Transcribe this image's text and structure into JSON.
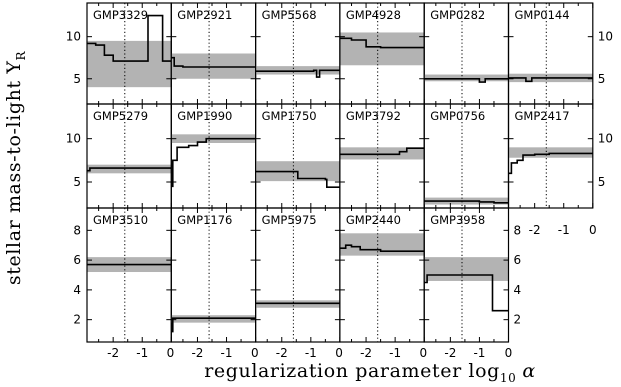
{
  "figure": {
    "ylabel_main": "stellar mass-to-light Υ",
    "ylabel_sub": "R",
    "xlabel_main": "regularization parameter log",
    "xlabel_sub": "10",
    "xlabel_symbol": "α"
  },
  "colors": {
    "band": "#b3b3b3",
    "line": "#000000",
    "axis": "#000000",
    "text": "#000000"
  },
  "chart_data": {
    "type": "line",
    "layout": "small multiples grid, 3 rows x 6 columns (last column of bottom row empty)",
    "x_axis": {
      "label": "regularization parameter log10 α",
      "range": [
        -2.9,
        0.0
      ],
      "ticks": [
        -2,
        -1,
        0
      ],
      "tick_labels_bottom": [
        "-2",
        "-1",
        "0"
      ],
      "tick_labels_row3_col6": [
        "-2",
        "-1",
        "0"
      ],
      "reference_line": -1.6,
      "reference_style": "dotted vertical"
    },
    "y_axis": {
      "label": "stellar mass-to-light ΥR",
      "rows": [
        {
          "range": [
            2.0,
            14.0
          ],
          "ticks": [
            5,
            10
          ],
          "tick_labels": [
            "5",
            "10"
          ]
        },
        {
          "range": [
            2.0,
            14.0
          ],
          "ticks": [
            5,
            10
          ],
          "tick_labels": [
            "5",
            "10"
          ]
        },
        {
          "range": [
            0.5,
            9.5
          ],
          "ticks": [
            2,
            4,
            6,
            8
          ],
          "tick_labels": [
            "2",
            "4",
            "6",
            "8"
          ]
        }
      ]
    },
    "panels": [
      {
        "name": "GMP3329",
        "row": 0,
        "col": 0,
        "band": [
          4.0,
          9.5
        ],
        "points": [
          [
            -2.9,
            9.2
          ],
          [
            -2.6,
            9.0
          ],
          [
            -2.3,
            7.8
          ],
          [
            -2.0,
            7.1
          ],
          [
            -1.5,
            7.1
          ],
          [
            -1.0,
            7.1
          ],
          [
            -0.8,
            12.5
          ],
          [
            -0.4,
            12.5
          ],
          [
            -0.3,
            7.1
          ],
          [
            0.0,
            7.1
          ]
        ]
      },
      {
        "name": "GMP2921",
        "row": 0,
        "col": 1,
        "band": [
          5.0,
          8.0
        ],
        "points": [
          [
            -2.9,
            7.5
          ],
          [
            -2.8,
            6.5
          ],
          [
            -2.5,
            6.4
          ],
          [
            -2.0,
            6.4
          ],
          [
            -1.0,
            6.4
          ],
          [
            -0.5,
            6.4
          ],
          [
            0.0,
            6.4
          ]
        ]
      },
      {
        "name": "GMP5568",
        "row": 0,
        "col": 2,
        "band": [
          5.5,
          6.5
        ],
        "points": [
          [
            -2.9,
            5.9
          ],
          [
            -2.0,
            5.9
          ],
          [
            -1.2,
            5.9
          ],
          [
            -0.9,
            6.0
          ],
          [
            -0.8,
            5.2
          ],
          [
            -0.7,
            6.0
          ],
          [
            0.0,
            6.0
          ]
        ]
      },
      {
        "name": "GMP4928",
        "row": 0,
        "col": 3,
        "band": [
          6.6,
          10.5
        ],
        "points": [
          [
            -2.9,
            9.8
          ],
          [
            -2.5,
            9.6
          ],
          [
            -2.0,
            8.8
          ],
          [
            -1.5,
            8.7
          ],
          [
            -1.0,
            8.7
          ],
          [
            -0.5,
            8.7
          ],
          [
            0.0,
            8.7
          ]
        ]
      },
      {
        "name": "GMP0282",
        "row": 0,
        "col": 4,
        "band": [
          4.7,
          5.5
        ],
        "points": [
          [
            -2.9,
            5.0
          ],
          [
            -2.0,
            5.0
          ],
          [
            -1.2,
            5.0
          ],
          [
            -1.0,
            4.6
          ],
          [
            -0.8,
            5.0
          ],
          [
            0.0,
            5.0
          ]
        ]
      },
      {
        "name": "GMP0144",
        "row": 0,
        "col": 5,
        "band": [
          4.6,
          5.6
        ],
        "points": [
          [
            -2.9,
            5.1
          ],
          [
            -2.5,
            5.1
          ],
          [
            -2.3,
            4.7
          ],
          [
            -2.1,
            5.1
          ],
          [
            -1.5,
            5.1
          ],
          [
            -0.7,
            5.1
          ],
          [
            0.0,
            5.1
          ]
        ]
      },
      {
        "name": "GMP5279",
        "row": 1,
        "col": 0,
        "band": [
          6.0,
          7.0
        ],
        "points": [
          [
            -2.9,
            6.3
          ],
          [
            -2.8,
            6.6
          ],
          [
            -2.0,
            6.6
          ],
          [
            -1.0,
            6.6
          ],
          [
            0.0,
            6.6
          ]
        ]
      },
      {
        "name": "GMP1990",
        "row": 1,
        "col": 1,
        "band": [
          9.5,
          10.5
        ],
        "points": [
          [
            -2.9,
            4.5
          ],
          [
            -2.85,
            7.5
          ],
          [
            -2.7,
            9.0
          ],
          [
            -2.3,
            9.2
          ],
          [
            -2.0,
            9.6
          ],
          [
            -1.7,
            10.0
          ],
          [
            -1.2,
            10.0
          ],
          [
            0.0,
            10.0
          ]
        ]
      },
      {
        "name": "GMP1750",
        "row": 1,
        "col": 2,
        "band": [
          5.1,
          7.4
        ],
        "points": [
          [
            -2.9,
            6.2
          ],
          [
            -2.0,
            6.2
          ],
          [
            -1.5,
            6.2
          ],
          [
            -1.45,
            5.4
          ],
          [
            -0.5,
            5.3
          ],
          [
            -0.45,
            4.4
          ],
          [
            0.0,
            4.4
          ]
        ]
      },
      {
        "name": "GMP3792",
        "row": 1,
        "col": 3,
        "band": [
          7.6,
          9.0
        ],
        "points": [
          [
            -2.9,
            8.2
          ],
          [
            -2.0,
            8.2
          ],
          [
            -1.0,
            8.2
          ],
          [
            -0.85,
            8.5
          ],
          [
            -0.7,
            8.5
          ],
          [
            -0.6,
            8.9
          ],
          [
            0.0,
            8.9
          ]
        ]
      },
      {
        "name": "GMP0756",
        "row": 1,
        "col": 4,
        "band": [
          2.4,
          3.2
        ],
        "points": [
          [
            -2.9,
            2.8
          ],
          [
            -2.0,
            2.8
          ],
          [
            -1.0,
            2.7
          ],
          [
            -0.5,
            2.6
          ],
          [
            0.0,
            2.6
          ]
        ]
      },
      {
        "name": "GMP2417",
        "row": 1,
        "col": 5,
        "band": [
          7.8,
          9.0
        ],
        "points": [
          [
            -2.9,
            6.0
          ],
          [
            -2.8,
            7.2
          ],
          [
            -2.6,
            7.5
          ],
          [
            -2.4,
            8.1
          ],
          [
            -2.0,
            8.2
          ],
          [
            -1.5,
            8.3
          ],
          [
            -0.5,
            8.3
          ],
          [
            0.0,
            8.3
          ]
        ]
      },
      {
        "name": "GMP3510",
        "row": 2,
        "col": 0,
        "band": [
          5.2,
          6.2
        ],
        "points": [
          [
            -2.9,
            5.7
          ],
          [
            -2.0,
            5.7
          ],
          [
            -1.0,
            5.7
          ],
          [
            0.0,
            5.7
          ]
        ]
      },
      {
        "name": "GMP1176",
        "row": 2,
        "col": 1,
        "band": [
          1.8,
          2.3
        ],
        "points": [
          [
            -2.9,
            1.2
          ],
          [
            -2.85,
            2.1
          ],
          [
            -2.0,
            2.1
          ],
          [
            -1.0,
            2.1
          ],
          [
            0.0,
            2.1
          ]
        ]
      },
      {
        "name": "GMP5975",
        "row": 2,
        "col": 2,
        "band": [
          2.8,
          3.3
        ],
        "points": [
          [
            -2.9,
            3.1
          ],
          [
            -2.0,
            3.1
          ],
          [
            -1.0,
            3.1
          ],
          [
            0.0,
            3.1
          ]
        ]
      },
      {
        "name": "GMP2440",
        "row": 2,
        "col": 3,
        "band": [
          6.3,
          7.8
        ],
        "points": [
          [
            -2.9,
            6.8
          ],
          [
            -2.7,
            7.0
          ],
          [
            -2.5,
            6.9
          ],
          [
            -2.2,
            6.7
          ],
          [
            -1.5,
            6.6
          ],
          [
            -1.0,
            6.6
          ],
          [
            0.0,
            6.6
          ]
        ]
      },
      {
        "name": "GMP3958",
        "row": 2,
        "col": 4,
        "band": [
          4.6,
          6.2
        ],
        "points": [
          [
            -2.9,
            4.5
          ],
          [
            -2.8,
            5.0
          ],
          [
            -2.0,
            5.0
          ],
          [
            -1.0,
            5.0
          ],
          [
            -0.6,
            5.0
          ],
          [
            -0.55,
            2.6
          ],
          [
            0.0,
            2.6
          ]
        ]
      }
    ]
  }
}
